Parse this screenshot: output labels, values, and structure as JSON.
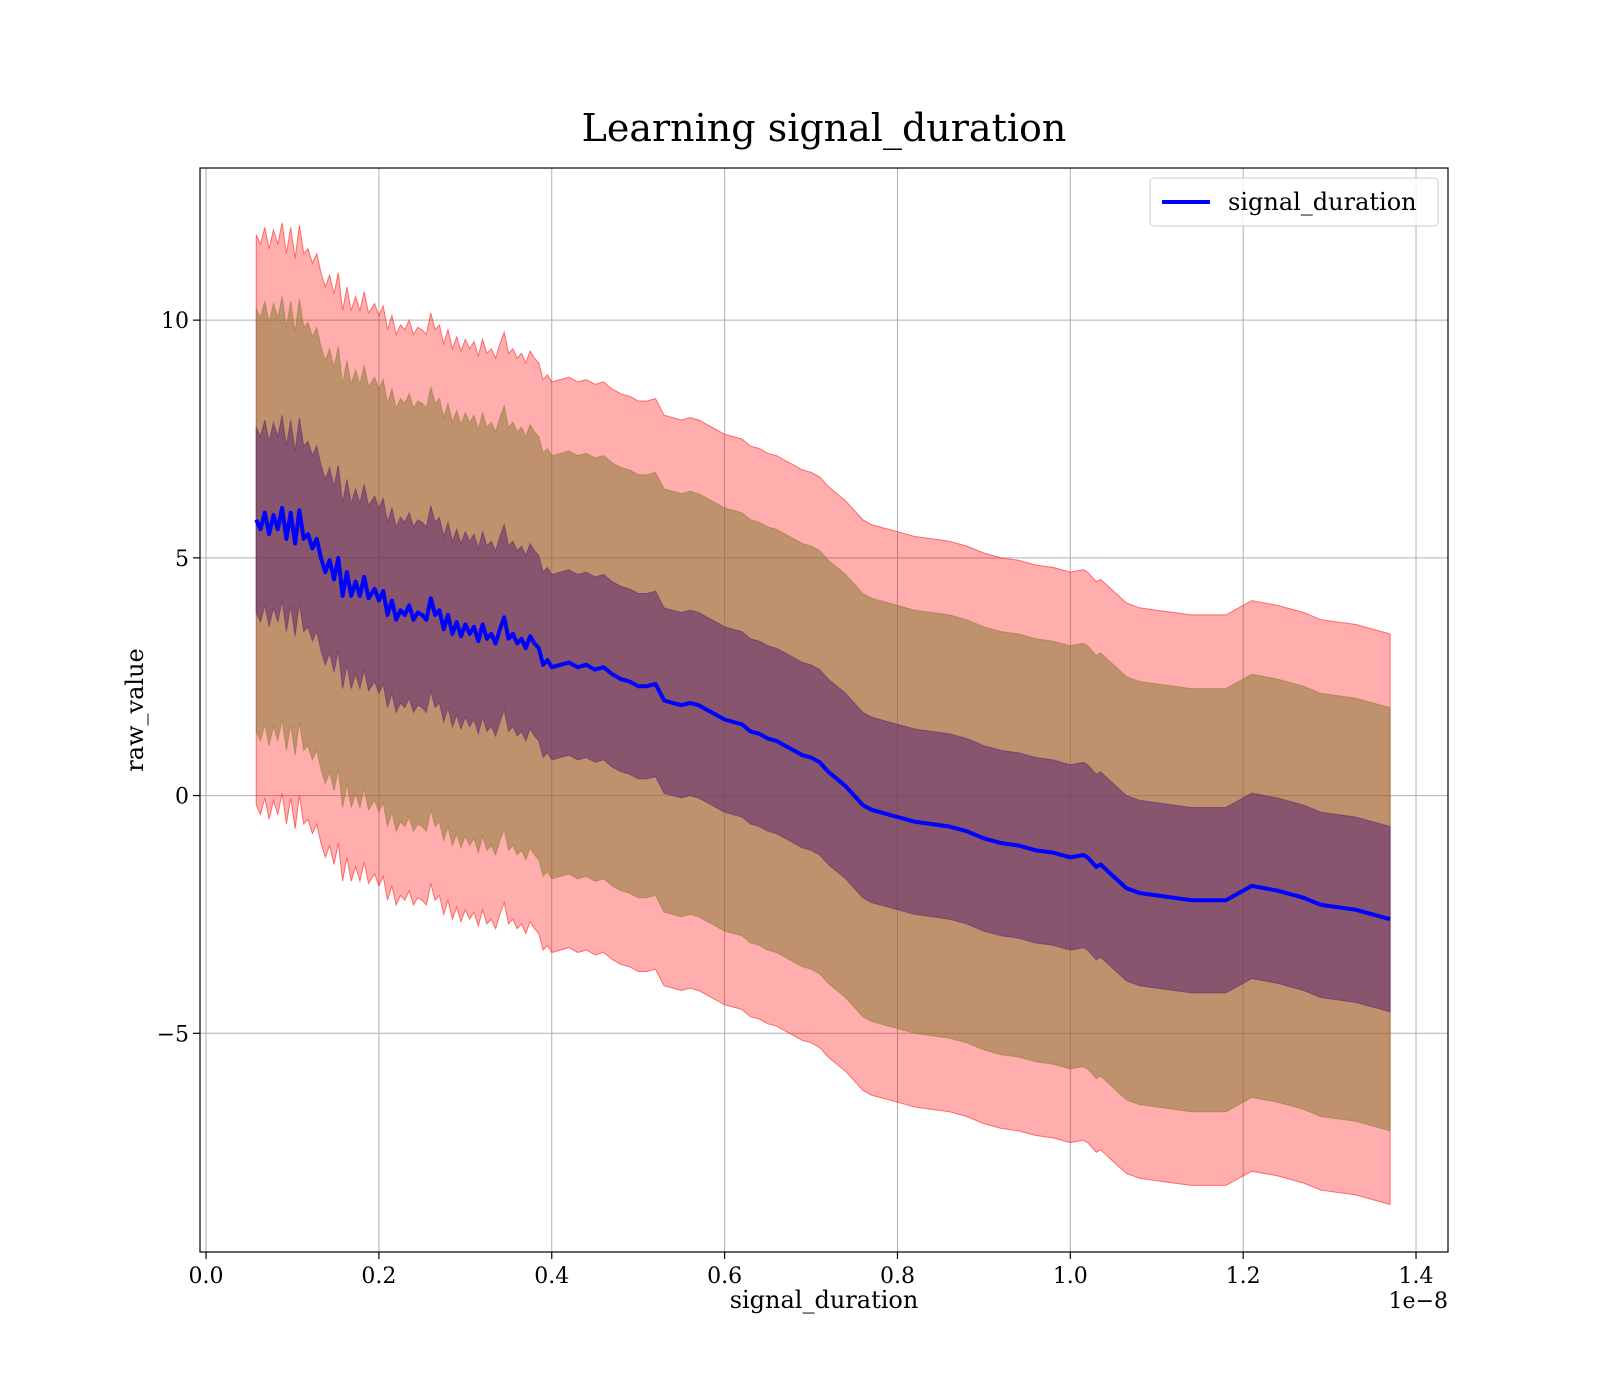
{
  "chart_data": {
    "type": "area",
    "title": "Learning signal_duration",
    "xlabel": "signal_duration",
    "ylabel": "raw_value",
    "x_offset_text": "1e−8",
    "xlim": [
      -0.007,
      1.437
    ],
    "ylim": [
      -9.6,
      13.2
    ],
    "x_ticks": [
      0.0,
      0.2,
      0.4,
      0.6,
      0.8,
      1.0,
      1.2,
      1.4
    ],
    "x_tick_labels": [
      "0.0",
      "0.2",
      "0.4",
      "0.6",
      "0.8",
      "1.0",
      "1.2",
      "1.4"
    ],
    "y_ticks": [
      -5,
      0,
      5,
      10
    ],
    "y_tick_labels": [
      "−5",
      "0",
      "5",
      "10"
    ],
    "grid": true,
    "legend_position": "top-right",
    "colors": {
      "line": "#0000ff",
      "outer_band": "#ff0000",
      "middle_band": "#8b7a37",
      "inner_band": "#5a2470",
      "grid": "#b0b0b0"
    },
    "series": [
      {
        "name": "signal_duration",
        "x": [
          0.058,
          0.063,
          0.068,
          0.073,
          0.078,
          0.083,
          0.088,
          0.093,
          0.098,
          0.103,
          0.108,
          0.113,
          0.118,
          0.123,
          0.128,
          0.133,
          0.138,
          0.143,
          0.148,
          0.153,
          0.158,
          0.163,
          0.168,
          0.173,
          0.178,
          0.183,
          0.188,
          0.195,
          0.2,
          0.205,
          0.21,
          0.215,
          0.22,
          0.225,
          0.23,
          0.235,
          0.24,
          0.245,
          0.25,
          0.255,
          0.26,
          0.265,
          0.27,
          0.275,
          0.28,
          0.285,
          0.29,
          0.295,
          0.3,
          0.305,
          0.31,
          0.315,
          0.32,
          0.325,
          0.33,
          0.335,
          0.34,
          0.345,
          0.35,
          0.355,
          0.36,
          0.365,
          0.37,
          0.375,
          0.38,
          0.385,
          0.39,
          0.395,
          0.4,
          0.41,
          0.42,
          0.43,
          0.44,
          0.45,
          0.46,
          0.47,
          0.48,
          0.49,
          0.5,
          0.51,
          0.52,
          0.53,
          0.54,
          0.55,
          0.56,
          0.57,
          0.58,
          0.59,
          0.6,
          0.61,
          0.62,
          0.63,
          0.64,
          0.65,
          0.66,
          0.67,
          0.68,
          0.69,
          0.7,
          0.71,
          0.72,
          0.73,
          0.74,
          0.75,
          0.76,
          0.77,
          0.78,
          0.8,
          0.82,
          0.84,
          0.86,
          0.88,
          0.9,
          0.92,
          0.94,
          0.96,
          0.98,
          1.0,
          1.015,
          1.02,
          1.03,
          1.035,
          1.05,
          1.065,
          1.08,
          1.1,
          1.12,
          1.14,
          1.16,
          1.18,
          1.21,
          1.24,
          1.27,
          1.29,
          1.33,
          1.37
        ],
        "values": [
          5.8,
          5.6,
          5.95,
          5.5,
          5.9,
          5.6,
          6.05,
          5.4,
          5.95,
          5.3,
          6.0,
          5.4,
          5.5,
          5.2,
          5.4,
          5.0,
          4.7,
          4.95,
          4.55,
          5.0,
          4.2,
          4.7,
          4.2,
          4.5,
          4.2,
          4.6,
          4.15,
          4.35,
          4.1,
          4.3,
          3.8,
          4.1,
          3.7,
          3.9,
          3.8,
          4.0,
          3.7,
          3.85,
          3.8,
          3.7,
          4.15,
          3.8,
          3.9,
          3.5,
          3.8,
          3.4,
          3.65,
          3.35,
          3.6,
          3.4,
          3.55,
          3.25,
          3.6,
          3.3,
          3.4,
          3.2,
          3.5,
          3.75,
          3.3,
          3.4,
          3.2,
          3.3,
          3.1,
          3.35,
          3.2,
          3.1,
          2.75,
          2.85,
          2.7,
          2.75,
          2.8,
          2.7,
          2.75,
          2.65,
          2.7,
          2.55,
          2.45,
          2.4,
          2.3,
          2.3,
          2.35,
          2.0,
          1.95,
          1.9,
          1.95,
          1.9,
          1.8,
          1.7,
          1.6,
          1.55,
          1.5,
          1.35,
          1.3,
          1.2,
          1.15,
          1.05,
          0.95,
          0.85,
          0.8,
          0.7,
          0.5,
          0.35,
          0.2,
          0.0,
          -0.2,
          -0.3,
          -0.35,
          -0.45,
          -0.55,
          -0.6,
          -0.65,
          -0.75,
          -0.9,
          -1.0,
          -1.05,
          -1.15,
          -1.2,
          -1.3,
          -1.25,
          -1.3,
          -1.5,
          -1.45,
          -1.7,
          -1.95,
          -2.05,
          -2.1,
          -2.15,
          -2.2,
          -2.2,
          -2.2,
          -1.9,
          -2.0,
          -2.15,
          -2.3,
          -2.4,
          -2.6
        ],
        "band_half_widths": [
          1.95,
          4.45,
          6.0
        ]
      }
    ]
  }
}
